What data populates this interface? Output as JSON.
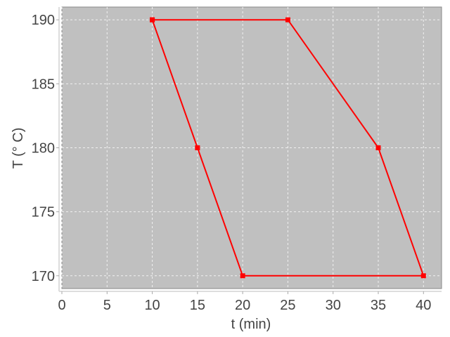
{
  "chart_data": {
    "type": "line",
    "title": "",
    "xlabel": "t (min)",
    "ylabel": "T (° C)",
    "xlim": [
      0,
      42
    ],
    "ylim": [
      169,
      191
    ],
    "xticks": [
      0,
      5,
      10,
      15,
      20,
      25,
      30,
      35,
      40
    ],
    "yticks": [
      170,
      175,
      180,
      185,
      190
    ],
    "grid": true,
    "background_color": "#c0c0c0",
    "series": [
      {
        "color": "#ff0000",
        "marker": "square",
        "x": [
          10,
          25,
          35,
          40,
          20,
          15,
          10
        ],
        "y": [
          190,
          190,
          180,
          170,
          170,
          180,
          190
        ]
      }
    ]
  }
}
